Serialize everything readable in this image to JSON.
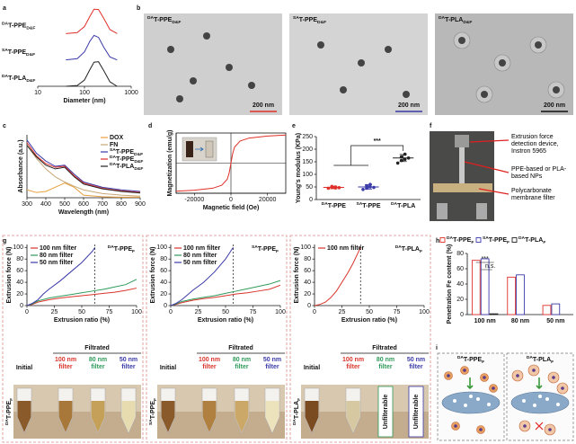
{
  "panel_labels": [
    "a",
    "b",
    "c",
    "d",
    "e",
    "f",
    "g",
    "h",
    "i"
  ],
  "chart_data": [
    {
      "type": "line",
      "xlabel": "Diameter (nm)",
      "log_x": true,
      "xlim": [
        10,
        1000
      ],
      "xticks": [
        10,
        100,
        1000
      ],
      "legend": "lanes",
      "x": [
        40,
        70,
        100,
        130,
        160,
        200,
        260,
        350,
        500
      ],
      "series": [
        {
          "name": {
            "sup": "DA",
            "text": "T-PPE",
            "sub": "D&F"
          },
          "color": "#e0302a",
          "values": [
            0,
            0.04,
            0.28,
            0.68,
            0.97,
            0.96,
            0.6,
            0.16,
            0
          ]
        },
        {
          "name": {
            "sup": "SA",
            "text": "T-PPE",
            "sub": "D&F"
          },
          "color": "#3a3aa8",
          "values": [
            0,
            0.05,
            0.32,
            0.74,
            0.98,
            0.9,
            0.5,
            0.12,
            0
          ]
        },
        {
          "name": {
            "sup": "DA",
            "text": "T-PLA",
            "sub": "D&F"
          },
          "color": "#222222",
          "values": [
            0,
            0.03,
            0.25,
            0.66,
            0.96,
            0.98,
            0.62,
            0.18,
            0
          ]
        }
      ]
    },
    {
      "type": "line",
      "xlabel": "Wavelength (nm)",
      "ylabel": "Absorbance (a.u.)",
      "xlim": [
        300,
        900
      ],
      "xticks": [
        300,
        400,
        500,
        600,
        700,
        800,
        900
      ],
      "ylim": [
        0,
        1.2
      ],
      "legend": "upper right",
      "x": [
        300,
        350,
        400,
        450,
        500,
        550,
        600,
        700,
        800,
        900
      ],
      "series": [
        {
          "name": "DOX",
          "color": "#e8a040",
          "values": [
            0.15,
            0.1,
            0.12,
            0.2,
            0.28,
            0.2,
            0.05,
            0.02,
            0.01,
            0.01
          ]
        },
        {
          "name": "FN",
          "color": "#c8a878",
          "values": [
            1.0,
            0.75,
            0.55,
            0.4,
            0.3,
            0.22,
            0.15,
            0.08,
            0.05,
            0.03
          ]
        },
        {
          "name": {
            "sup": "SA",
            "text": "T-PPE",
            "sub": "D&F"
          },
          "color": "#3a3aa8",
          "values": [
            1.1,
            0.85,
            0.7,
            0.6,
            0.62,
            0.45,
            0.3,
            0.2,
            0.15,
            0.12
          ]
        },
        {
          "name": {
            "sup": "DA",
            "text": "T-PPE",
            "sub": "D&F"
          },
          "color": "#e0302a",
          "values": [
            1.05,
            0.8,
            0.65,
            0.58,
            0.6,
            0.42,
            0.28,
            0.18,
            0.13,
            0.1
          ]
        },
        {
          "name": {
            "sup": "DA",
            "text": "T-PLA",
            "sub": "D&F"
          },
          "color": "#222222",
          "values": [
            1.0,
            0.78,
            0.62,
            0.55,
            0.58,
            0.4,
            0.26,
            0.17,
            0.12,
            0.09
          ]
        }
      ]
    },
    {
      "type": "line",
      "xlabel": "Magnetic field (Oe)",
      "ylabel": "Magnetization (emu/g)",
      "xlim": [
        -30000,
        30000
      ],
      "xticks": [
        -20000,
        0,
        20000
      ],
      "ylim": [
        -150,
        150
      ],
      "x": [
        -30000,
        -20000,
        -10000,
        -5000,
        -2000,
        -1000,
        0,
        1000,
        2000,
        5000,
        10000,
        20000,
        30000
      ],
      "series": [
        {
          "color": "#e0302a",
          "values": [
            -140,
            -135,
            -125,
            -110,
            -80,
            -50,
            0,
            50,
            80,
            110,
            125,
            135,
            140
          ]
        }
      ]
    },
    {
      "type": "dot",
      "ylabel": "Young's modulus (KPa)",
      "ylim": [
        0,
        250
      ],
      "yticks": [
        0,
        50,
        100,
        150,
        200,
        250
      ],
      "categories": [
        {
          "sup": "DA",
          "text": "T-PPE"
        },
        {
          "sup": "SA",
          "text": "T-PPE"
        },
        {
          "sup": "DA",
          "text": "T-PLA"
        }
      ],
      "colors": [
        "#e0302a",
        "#3a3aa8",
        "#222222"
      ],
      "values": [
        48,
        50,
        165
      ],
      "errors": [
        5,
        9,
        14
      ],
      "points": [
        [
          45,
          48,
          50,
          52,
          46,
          47
        ],
        [
          40,
          45,
          50,
          55,
          60,
          48
        ],
        [
          145,
          155,
          160,
          170,
          180,
          165
        ]
      ],
      "annotations": [
        "***"
      ]
    },
    {
      "type": "line",
      "title": {
        "sup": "DA",
        "text": "T-PPE",
        "sub": "F"
      },
      "xlabel": "Extrusion ratio (%)",
      "ylabel": "Extrusion force (N)",
      "xlim": [
        0,
        100
      ],
      "xticks": [
        0,
        25,
        50,
        75,
        100
      ],
      "ylim": [
        0,
        105
      ],
      "yticks": [
        0,
        20,
        40,
        60,
        80,
        100
      ],
      "legend": "upper left",
      "vline": 62,
      "series": [
        {
          "name": "100 nm filter",
          "color": "#d9342b",
          "x": [
            0,
            5,
            10,
            20,
            30,
            40,
            50,
            60,
            70,
            80,
            90,
            100
          ],
          "values": [
            0,
            2,
            6,
            10,
            13,
            15,
            17,
            19,
            21,
            23,
            26,
            30
          ]
        },
        {
          "name": "80 nm filter",
          "color": "#2e9a5a",
          "x": [
            0,
            5,
            10,
            20,
            30,
            40,
            50,
            60,
            70,
            80,
            90,
            100
          ],
          "values": [
            0,
            3,
            8,
            13,
            16,
            19,
            22,
            25,
            28,
            32,
            36,
            45
          ]
        },
        {
          "name": "50 nm filter",
          "color": "#3a3aa8",
          "x": [
            0,
            5,
            10,
            15,
            20,
            30,
            40,
            50,
            60,
            62
          ],
          "values": [
            0,
            4,
            10,
            20,
            28,
            42,
            58,
            74,
            94,
            100
          ]
        }
      ]
    },
    {
      "type": "line",
      "title": {
        "sup": "SA",
        "text": "T-PPE",
        "sub": "F"
      },
      "xlabel": "Extrusion ratio (%)",
      "ylabel": "Extrusion force (N)",
      "xlim": [
        0,
        100
      ],
      "xticks": [
        0,
        25,
        50,
        75,
        100
      ],
      "ylim": [
        0,
        105
      ],
      "yticks": [
        0,
        20,
        40,
        60,
        80,
        100
      ],
      "legend": "upper left",
      "vline": 57,
      "series": [
        {
          "name": "100 nm filter",
          "color": "#d9342b",
          "x": [
            0,
            5,
            10,
            20,
            30,
            40,
            50,
            60,
            70,
            80,
            90,
            100
          ],
          "values": [
            0,
            2,
            5,
            9,
            12,
            14,
            17,
            20,
            22,
            25,
            28,
            35
          ]
        },
        {
          "name": "80 nm filter",
          "color": "#2e9a5a",
          "x": [
            0,
            5,
            10,
            20,
            30,
            40,
            50,
            60,
            70,
            80,
            90,
            100
          ],
          "values": [
            0,
            3,
            7,
            11,
            14,
            17,
            21,
            25,
            29,
            33,
            37,
            43
          ]
        },
        {
          "name": "50 nm filter",
          "color": "#3a3aa8",
          "x": [
            0,
            5,
            10,
            15,
            20,
            30,
            40,
            50,
            57
          ],
          "values": [
            0,
            4,
            10,
            18,
            26,
            40,
            58,
            80,
            100
          ]
        }
      ]
    },
    {
      "type": "line",
      "title": {
        "sup": "DA",
        "text": "T-PLA",
        "sub": "F"
      },
      "xlabel": "Extrusion ratio (%)",
      "ylabel": "Extrusion force (N)",
      "xlim": [
        0,
        100
      ],
      "xticks": [
        0,
        25,
        50,
        75,
        100
      ],
      "ylim": [
        0,
        105
      ],
      "yticks": [
        0,
        20,
        40,
        60,
        80,
        100
      ],
      "legend": "upper left",
      "vline": 42,
      "series": [
        {
          "name": "100 nm filter",
          "color": "#d9342b",
          "x": [
            0,
            5,
            10,
            15,
            20,
            25,
            30,
            35,
            40,
            42
          ],
          "values": [
            0,
            2,
            6,
            14,
            25,
            40,
            55,
            72,
            92,
            100
          ]
        }
      ]
    },
    {
      "type": "bar",
      "ylabel": "Penetration Fe content (%)",
      "ylim": [
        0,
        80
      ],
      "yticks": [
        0,
        20,
        40,
        60,
        80
      ],
      "legend": "top",
      "categories": [
        "100 nm",
        "80 nm",
        "50 nm"
      ],
      "series": [
        {
          "name": {
            "sup": "DA",
            "text": "T-PPE",
            "sub": "F"
          },
          "color": "#e0302a",
          "values": [
            71,
            49,
            12
          ]
        },
        {
          "name": {
            "sup": "SA",
            "text": "T-PPE",
            "sub": "F"
          },
          "color": "#3a3aa8",
          "values": [
            73,
            52,
            14
          ]
        },
        {
          "name": {
            "sup": "DA",
            "text": "T-PLA",
            "sub": "F"
          },
          "color": "#222222",
          "values": [
            1,
            null,
            null
          ]
        }
      ],
      "annotations": [
        "***",
        "n.s."
      ]
    }
  ],
  "figures": {
    "b": [
      {
        "label": {
          "sup": "DA",
          "text": "T-PPE",
          "sub": "D&F"
        },
        "scale_bar": "200 nm"
      },
      {
        "label": {
          "sup": "SA",
          "text": "T-PPE",
          "sub": "D&F"
        },
        "scale_bar": "200 nm"
      },
      {
        "label": {
          "sup": "DA",
          "text": "T-PLA",
          "sub": "D&F"
        },
        "scale_bar": "200 nm"
      }
    ],
    "f": [
      "Extrusion force detection device, Instron 5965",
      "PPE-based or PLA-based NPs",
      "Polycarbonate membrane filter"
    ],
    "g_photos": [
      {
        "sample": {
          "sup": "DA",
          "text": "T-PPE",
          "sub": "F"
        },
        "group": "Filtrated",
        "columns": [
          "Initial",
          "100 nm filter",
          "80 nm filter",
          "50 nm filter"
        ]
      },
      {
        "sample": {
          "sup": "SA",
          "text": "T-PPE",
          "sub": "F"
        },
        "group": "Filtrated",
        "columns": [
          "Initial",
          "100 nm filter",
          "80 nm filter",
          "50 nm filter"
        ]
      },
      {
        "sample": {
          "sup": "DA",
          "text": "T-PLA",
          "sub": "F"
        },
        "group": "Filtrated",
        "columns": [
          "Initial",
          "100 nm filter",
          "80 nm filter",
          "50 nm filter"
        ],
        "unfilterable": [
          "Unfilterable",
          "Unfilterable"
        ]
      }
    ],
    "i": [
      {
        "sup": "DA",
        "text": "T-PPE",
        "sub": "F"
      },
      {
        "sup": "DA",
        "text": "T-PLA",
        "sub": "F"
      }
    ]
  }
}
